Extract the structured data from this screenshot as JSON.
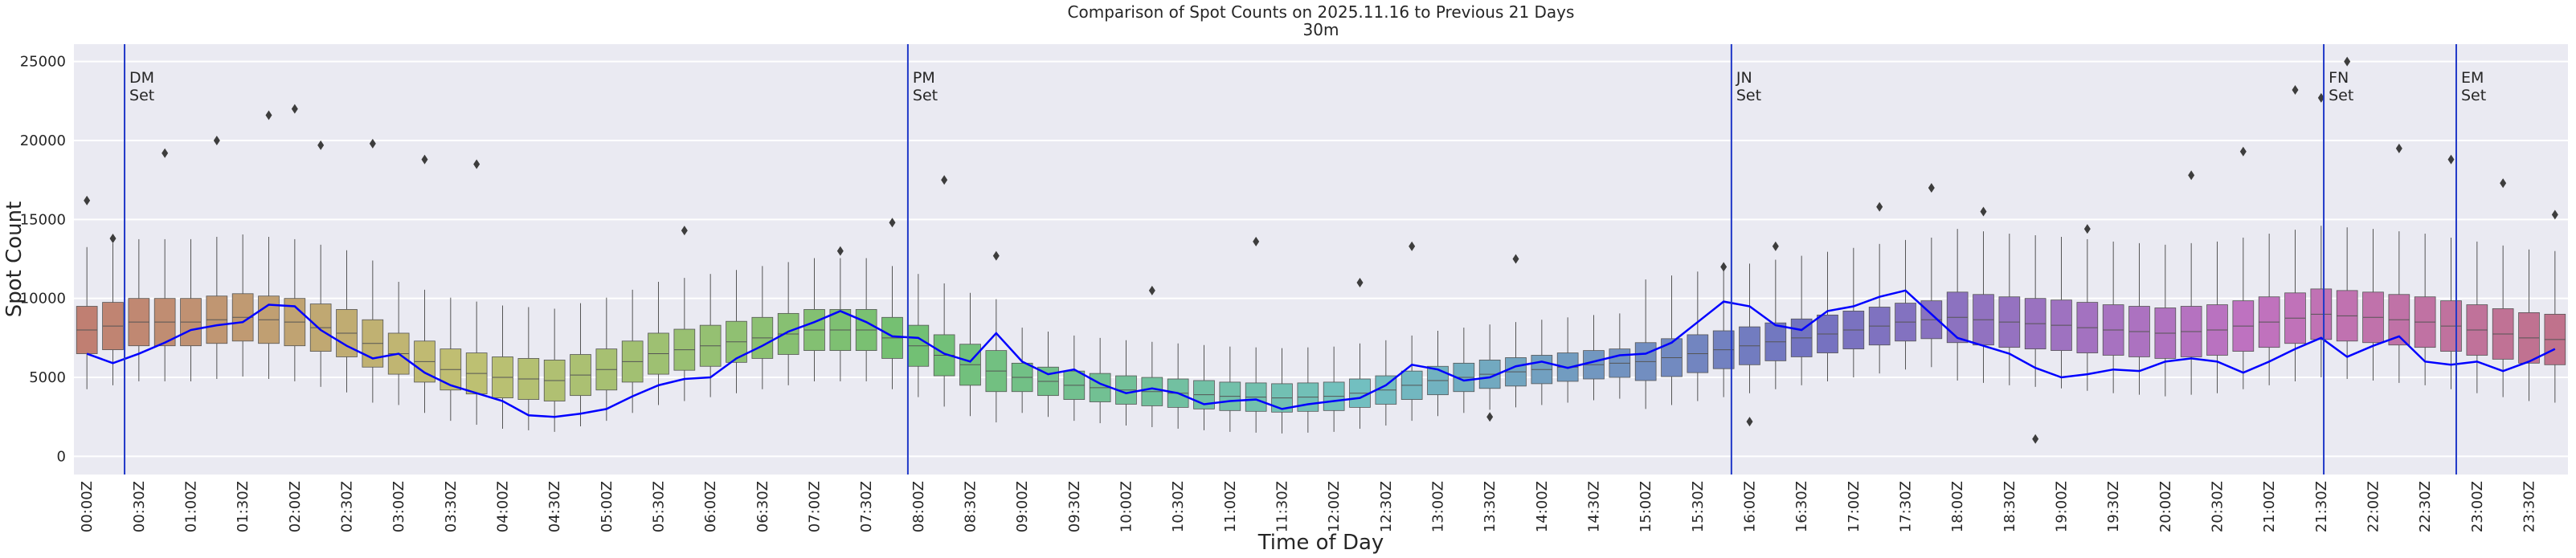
{
  "chart_data": {
    "type": "box",
    "title": "Comparison of Spot Counts on 2025.11.16 to Previous 21 Days",
    "subtitle": "30m",
    "x_label": "Time of Day",
    "y_label": "Spot Count",
    "palette": "husl",
    "grid": true,
    "ylim": [
      -1150,
      26100
    ],
    "yticks": [
      0,
      5000,
      10000,
      15000,
      20000,
      25000
    ],
    "categories": [
      "00:00Z",
      null,
      "00:30Z",
      null,
      "01:00Z",
      null,
      "01:30Z",
      null,
      "02:00Z",
      null,
      "02:30Z",
      null,
      "03:00Z",
      null,
      "03:30Z",
      null,
      "04:00Z",
      null,
      "04:30Z",
      null,
      "05:00Z",
      null,
      "05:30Z",
      null,
      "06:00Z",
      null,
      "06:30Z",
      null,
      "07:00Z",
      null,
      "07:30Z",
      null,
      "08:00Z",
      null,
      "08:30Z",
      null,
      "09:00Z",
      null,
      "09:30Z",
      null,
      "10:00Z",
      null,
      "10:30Z",
      null,
      "11:00Z",
      null,
      "11:30Z",
      null,
      "12:00Z",
      null,
      "12:30Z",
      null,
      "13:00Z",
      null,
      "13:30Z",
      null,
      "14:00Z",
      null,
      "14:30Z",
      null,
      "15:00Z",
      null,
      "15:30Z",
      null,
      "16:00Z",
      null,
      "16:30Z",
      null,
      "17:00Z",
      null,
      "17:30Z",
      null,
      "18:00Z",
      null,
      "18:30Z",
      null,
      "19:00Z",
      null,
      "19:30Z",
      null,
      "20:00Z",
      null,
      "20:30Z",
      null,
      "21:00Z",
      null,
      "21:30Z",
      null,
      "22:00Z",
      null,
      "22:30Z",
      null,
      "23:00Z",
      null,
      "23:30Z",
      null
    ],
    "boxes": {
      "whislo": [
        4250,
        4500,
        4750,
        4750,
        4750,
        4900,
        5050,
        4900,
        4750,
        4400,
        4050,
        3400,
        3250,
        2750,
        2250,
        2000,
        1750,
        1650,
        1550,
        1900,
        2250,
        2750,
        3250,
        3500,
        3750,
        4000,
        4250,
        4500,
        4750,
        4750,
        4750,
        4250,
        3750,
        3150,
        2550,
        2150,
        2750,
        2500,
        2250,
        2100,
        1950,
        1850,
        1750,
        1650,
        1550,
        1500,
        1450,
        1500,
        1550,
        1750,
        1950,
        2250,
        2550,
        2750,
        2950,
        3100,
        3250,
        3400,
        3550,
        3650,
        3000,
        3250,
        3500,
        3750,
        4000,
        4250,
        4500,
        4750,
        5000,
        5250,
        5500,
        5650,
        4800,
        4650,
        4500,
        4400,
        4300,
        4150,
        4000,
        3900,
        3800,
        3900,
        4000,
        4250,
        4500,
        4750,
        5000,
        4900,
        4800,
        4650,
        4500,
        4250,
        4000,
        3750,
        3500,
        3400
      ],
      "q1": [
        6500,
        6750,
        7000,
        7000,
        7000,
        7150,
        7300,
        7150,
        7000,
        6650,
        6300,
        5650,
        5200,
        4700,
        4200,
        3950,
        3700,
        3600,
        3500,
        3850,
        4200,
        4700,
        5200,
        5450,
        5700,
        5950,
        6200,
        6450,
        6700,
        6700,
        6700,
        6200,
        5700,
        5100,
        4500,
        4100,
        4100,
        3850,
        3600,
        3450,
        3300,
        3200,
        3100,
        3000,
        2900,
        2850,
        2800,
        2850,
        2900,
        3100,
        3300,
        3600,
        3900,
        4100,
        4300,
        4450,
        4600,
        4750,
        4900,
        5000,
        4800,
        5050,
        5300,
        5550,
        5800,
        6050,
        6300,
        6550,
        6800,
        7050,
        7300,
        7450,
        7200,
        7050,
        6900,
        6800,
        6700,
        6550,
        6400,
        6300,
        6200,
        6300,
        6400,
        6650,
        6900,
        7150,
        7400,
        7300,
        7200,
        7050,
        6900,
        6650,
        6400,
        6150,
        5900,
        5800
      ],
      "med": [
        8000,
        8250,
        8500,
        8500,
        8500,
        8650,
        8800,
        8650,
        8500,
        8150,
        7800,
        7150,
        6500,
        6000,
        5500,
        5250,
        5000,
        4900,
        4800,
        5150,
        5500,
        6000,
        6500,
        6750,
        7000,
        7250,
        7500,
        7750,
        8000,
        8000,
        8000,
        7500,
        7000,
        6400,
        5800,
        5400,
        5000,
        4750,
        4500,
        4350,
        4200,
        4100,
        4000,
        3900,
        3800,
        3750,
        3700,
        3750,
        3800,
        4000,
        4200,
        4500,
        4800,
        5000,
        5200,
        5350,
        5500,
        5650,
        5800,
        5900,
        6000,
        6250,
        6500,
        6750,
        7000,
        7250,
        7500,
        7750,
        8000,
        8250,
        8500,
        8650,
        8800,
        8650,
        8500,
        8400,
        8300,
        8150,
        8000,
        7900,
        7800,
        7900,
        8000,
        8250,
        8500,
        8750,
        9000,
        8900,
        8800,
        8650,
        8500,
        8250,
        8000,
        7750,
        7500,
        7400
      ],
      "q3": [
        9500,
        9750,
        10000,
        10000,
        10000,
        10150,
        10300,
        10150,
        10000,
        9650,
        9300,
        8650,
        7800,
        7300,
        6800,
        6550,
        6300,
        6200,
        6100,
        6450,
        6800,
        7300,
        7800,
        8050,
        8300,
        8550,
        8800,
        9050,
        9300,
        9300,
        9300,
        8800,
        8300,
        7700,
        7100,
        6700,
        5900,
        5650,
        5400,
        5250,
        5100,
        5000,
        4900,
        4800,
        4700,
        4650,
        4600,
        4650,
        4700,
        4900,
        5100,
        5400,
        5700,
        5900,
        6100,
        6250,
        6400,
        6550,
        6700,
        6800,
        7200,
        7450,
        7700,
        7950,
        8200,
        8450,
        8700,
        8950,
        9200,
        9450,
        9700,
        9850,
        10400,
        10250,
        10100,
        10000,
        9900,
        9750,
        9600,
        9500,
        9400,
        9500,
        9600,
        9850,
        10100,
        10350,
        10600,
        10500,
        10400,
        10250,
        10100,
        9850,
        9600,
        9350,
        9100,
        9000
      ],
      "whishi": [
        13250,
        13500,
        13750,
        13750,
        13750,
        13900,
        14050,
        13900,
        13750,
        13400,
        13050,
        12400,
        11050,
        10550,
        10050,
        9800,
        9550,
        9450,
        9350,
        9700,
        10050,
        10550,
        11050,
        11300,
        11550,
        11800,
        12050,
        12300,
        12550,
        12550,
        12550,
        12050,
        11550,
        10950,
        10350,
        9950,
        8150,
        7900,
        7650,
        7500,
        7350,
        7250,
        7150,
        7050,
        6950,
        6900,
        6850,
        6900,
        6950,
        7150,
        7350,
        7650,
        7950,
        8150,
        8350,
        8500,
        8650,
        8800,
        8950,
        9050,
        11200,
        11450,
        11700,
        11950,
        12200,
        12450,
        12700,
        12950,
        13200,
        13450,
        13700,
        13850,
        14400,
        14250,
        14100,
        14000,
        13900,
        13750,
        13600,
        13500,
        13400,
        13500,
        13600,
        13850,
        14100,
        14350,
        14600,
        14500,
        14400,
        14250,
        14100,
        13850,
        13600,
        13350,
        13100,
        13000
      ]
    },
    "line": {
      "color": "#0000ff",
      "values": [
        6500,
        5900,
        6500,
        7200,
        8000,
        8300,
        8500,
        9600,
        9500,
        8000,
        7000,
        6200,
        6500,
        5300,
        4500,
        4000,
        3500,
        2600,
        2500,
        2700,
        3000,
        3800,
        4500,
        4900,
        5000,
        6200,
        7000,
        7900,
        8500,
        9200,
        8500,
        7600,
        7500,
        6500,
        6000,
        7800,
        6000,
        5200,
        5500,
        4600,
        4000,
        4300,
        4000,
        3300,
        3500,
        3600,
        3000,
        3300,
        3500,
        3700,
        4500,
        5800,
        5500,
        4800,
        5000,
        5700,
        6000,
        5600,
        6000,
        6400,
        6500,
        7200,
        8500,
        9800,
        9500,
        8300,
        8000,
        9200,
        9500,
        10100,
        10500,
        9000,
        7500,
        7000,
        6500,
        5600,
        5000,
        5200,
        5500,
        5400,
        6000,
        6200,
        6000,
        5300,
        6000,
        6800,
        7500,
        6300,
        7000,
        7600,
        6000,
        5800,
        6000,
        5400,
        6000,
        6800
      ]
    },
    "outliers": {
      "color": "#3d3d3d",
      "x": [
        0,
        1,
        3,
        5,
        7,
        8,
        9,
        11,
        13,
        15,
        23,
        29,
        31,
        33,
        35,
        41,
        45,
        49,
        51,
        55,
        63,
        65,
        69,
        71,
        73,
        77,
        81,
        83,
        85,
        86,
        87,
        89,
        91,
        93,
        95,
        54,
        64,
        75
      ],
      "y": [
        16200,
        13800,
        19200,
        20000,
        21600,
        22000,
        19700,
        19800,
        18800,
        18500,
        14300,
        13000,
        14800,
        17500,
        12700,
        10500,
        13600,
        11000,
        13300,
        12500,
        12000,
        13300,
        15800,
        17000,
        15500,
        14400,
        17800,
        19300,
        23200,
        22700,
        25000,
        19500,
        18800,
        17300,
        15300,
        2500,
        2200,
        1100
      ]
    },
    "events": {
      "color": "#2038c8",
      "items": [
        {
          "position": 1.45,
          "label": [
            "DM",
            "Set"
          ]
        },
        {
          "position": 31.6,
          "label": [
            "PM",
            "Set"
          ]
        },
        {
          "position": 63.3,
          "label": [
            "JN",
            "Set"
          ]
        },
        {
          "position": 86.1,
          "label": [
            "FN",
            "Set"
          ]
        },
        {
          "position": 91.2,
          "label": [
            "EM",
            "Set"
          ]
        }
      ]
    }
  }
}
